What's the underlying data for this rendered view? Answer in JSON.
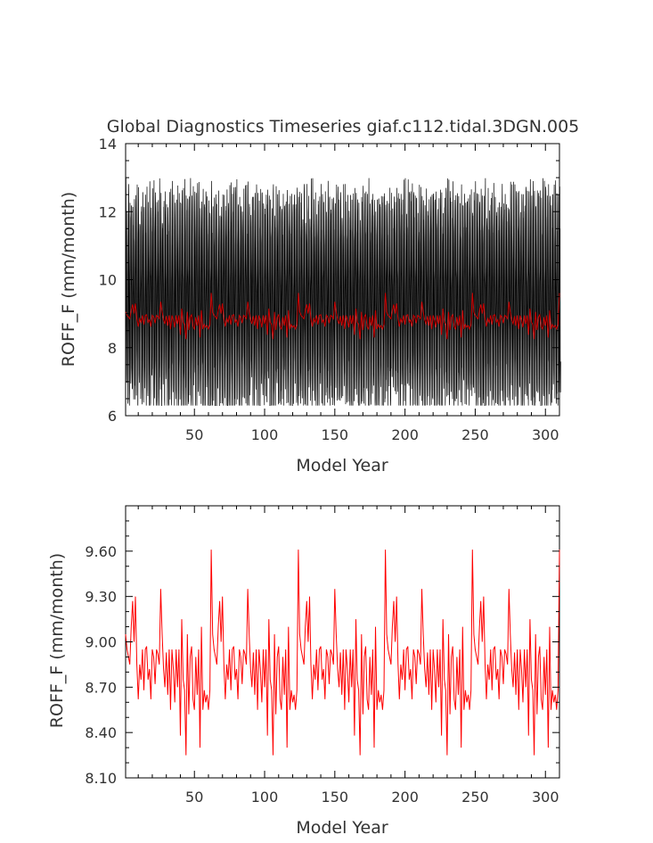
{
  "figure": {
    "title": "Global Diagnostics Timeseries giaf.c112.tidal.3DGN.005"
  },
  "chart_data": [
    {
      "type": "line",
      "title": "Global Diagnostics Timeseries giaf.c112.tidal.3DGN.005",
      "xlabel": "Model Year",
      "ylabel": "ROFF_F (mm/month)",
      "xlim": [
        1,
        310
      ],
      "ylim": [
        6,
        14
      ],
      "xticks": [
        50,
        100,
        150,
        200,
        250,
        300
      ],
      "xtick_labels": [
        "50",
        "100",
        "150",
        "200",
        "250",
        "300"
      ],
      "yticks": [
        6,
        8,
        10,
        12,
        14
      ],
      "ytick_labels": [
        "6",
        "8",
        "10",
        "12",
        "14"
      ],
      "grid": false,
      "legend": "none",
      "monthly_envelope": {
        "min_approx": 6.3,
        "max_approx": 13.1
      },
      "series": [
        {
          "kind": "monthly",
          "color": "#000000",
          "values_note": "monthly values oscillating between ~6.3 and ~13.1 mm/month every year"
        },
        {
          "kind": "annual",
          "color": "#cc0000",
          "values_ref": "annual_values"
        }
      ]
    },
    {
      "type": "line",
      "title": "",
      "xlabel": "Model Year",
      "ylabel": "ROFF_F (mm/month)",
      "xlim": [
        1,
        310
      ],
      "ylim": [
        8.1,
        9.9
      ],
      "xticks": [
        50,
        100,
        150,
        200,
        250,
        300
      ],
      "xtick_labels": [
        "50",
        "100",
        "150",
        "200",
        "250",
        "300"
      ],
      "yticks": [
        8.1,
        8.4,
        8.7,
        9.0,
        9.3,
        9.6
      ],
      "ytick_labels": [
        "8.10",
        "8.40",
        "8.70",
        "9.00",
        "9.30",
        "9.60"
      ],
      "grid": false,
      "legend": "none",
      "series": [
        {
          "kind": "annual",
          "color": "#ff0000",
          "values_ref": "annual_values"
        }
      ]
    }
  ],
  "annual_values": {
    "x_start": 1,
    "x_step": 1,
    "cycle_length": 62,
    "cycle": [
      9.05,
      8.95,
      8.9,
      8.85,
      9.1,
      9.27,
      9.0,
      9.3,
      8.85,
      8.62,
      8.85,
      8.75,
      8.95,
      8.68,
      8.95,
      8.97,
      8.75,
      8.82,
      8.62,
      8.95,
      8.9,
      8.72,
      8.95,
      8.92,
      8.85,
      9.35,
      9.05,
      8.82,
      8.7,
      8.93,
      8.65,
      8.95,
      8.55,
      8.95,
      8.82,
      8.6,
      8.95,
      8.7,
      8.95,
      8.38,
      9.15,
      8.75,
      8.68,
      8.25,
      9.05,
      8.52,
      8.9,
      8.97,
      8.62,
      8.55,
      8.9,
      8.65,
      8.95,
      8.3,
      9.1,
      8.55,
      8.68,
      8.6,
      8.65,
      8.55,
      8.68,
      8.65
    ],
    "cycle_peak": {
      "index": 62,
      "value": 9.61
    }
  }
}
